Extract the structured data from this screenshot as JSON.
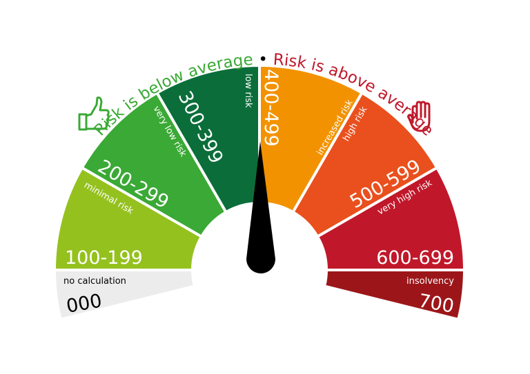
{
  "header": {
    "below_label": "Risk is below average",
    "separator": "•",
    "above_label": "Risk is above average",
    "below_color": "#3aa935",
    "above_color": "#c0182a"
  },
  "icons": {
    "left": "thumbs-up-icon",
    "right": "stop-hand-icon"
  },
  "segments": [
    {
      "range": "000",
      "label": "no calculation",
      "color": "#ececec"
    },
    {
      "range": "100-199",
      "label": "minimal risk",
      "color": "#95c11f"
    },
    {
      "range": "200-299",
      "label": "very low risk",
      "color": "#3aa935"
    },
    {
      "range": "300-399",
      "label": "low risk",
      "color": "#0b6e3a"
    },
    {
      "range": "400-499",
      "label": "increased risk",
      "color": "#f39200"
    },
    {
      "range": "500-599",
      "label": "high risk",
      "color": "#e9501e"
    },
    {
      "range": "600-699",
      "label": "very high risk",
      "color": "#c0182a"
    },
    {
      "range": "700",
      "label": "insolvency",
      "color": "#9c1619"
    }
  ],
  "needle": {
    "color": "#000000",
    "pointing_at": "400-499"
  }
}
